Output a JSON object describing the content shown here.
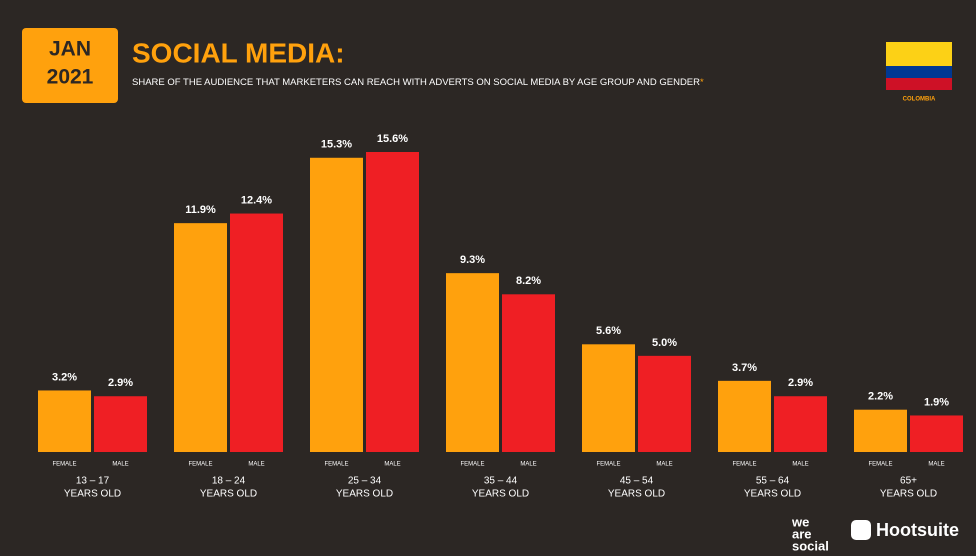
{
  "header": {
    "badge_month": "JAN",
    "badge_year": "2021",
    "title": "SOCIAL MEDIA:",
    "subtitle": "SHARE OF THE AUDIENCE THAT MARKETERS CAN REACH WITH ADVERTS ON SOCIAL MEDIA BY AGE GROUP AND GENDER",
    "subtitle_mark": "*",
    "country": "COLOMBIA"
  },
  "footer": {
    "brand_1": [
      "we",
      "are",
      "social"
    ],
    "brand_2": "Hootsuite"
  },
  "chart_data": {
    "type": "bar",
    "categories": [
      "13 – 17",
      "18 – 24",
      "25 – 34",
      "35 – 44",
      "45 – 54",
      "55 – 64",
      "65+"
    ],
    "category_line2": "YEARS OLD",
    "series": [
      {
        "name": "FEMALE",
        "color": "#ffa10d",
        "values": [
          3.2,
          11.9,
          15.3,
          9.3,
          5.6,
          3.7,
          2.2
        ],
        "value_labels": [
          "3.2%",
          "11.9%",
          "15.3%",
          "9.3%",
          "5.6%",
          "3.7%",
          "2.2%"
        ]
      },
      {
        "name": "MALE",
        "color": "#ef1f24",
        "values": [
          2.9,
          12.4,
          15.6,
          8.2,
          5.0,
          2.9,
          1.9
        ],
        "value_labels": [
          "2.9%",
          "12.4%",
          "15.6%",
          "8.2%",
          "5.0%",
          "2.9%",
          "1.9%"
        ]
      }
    ]
  }
}
